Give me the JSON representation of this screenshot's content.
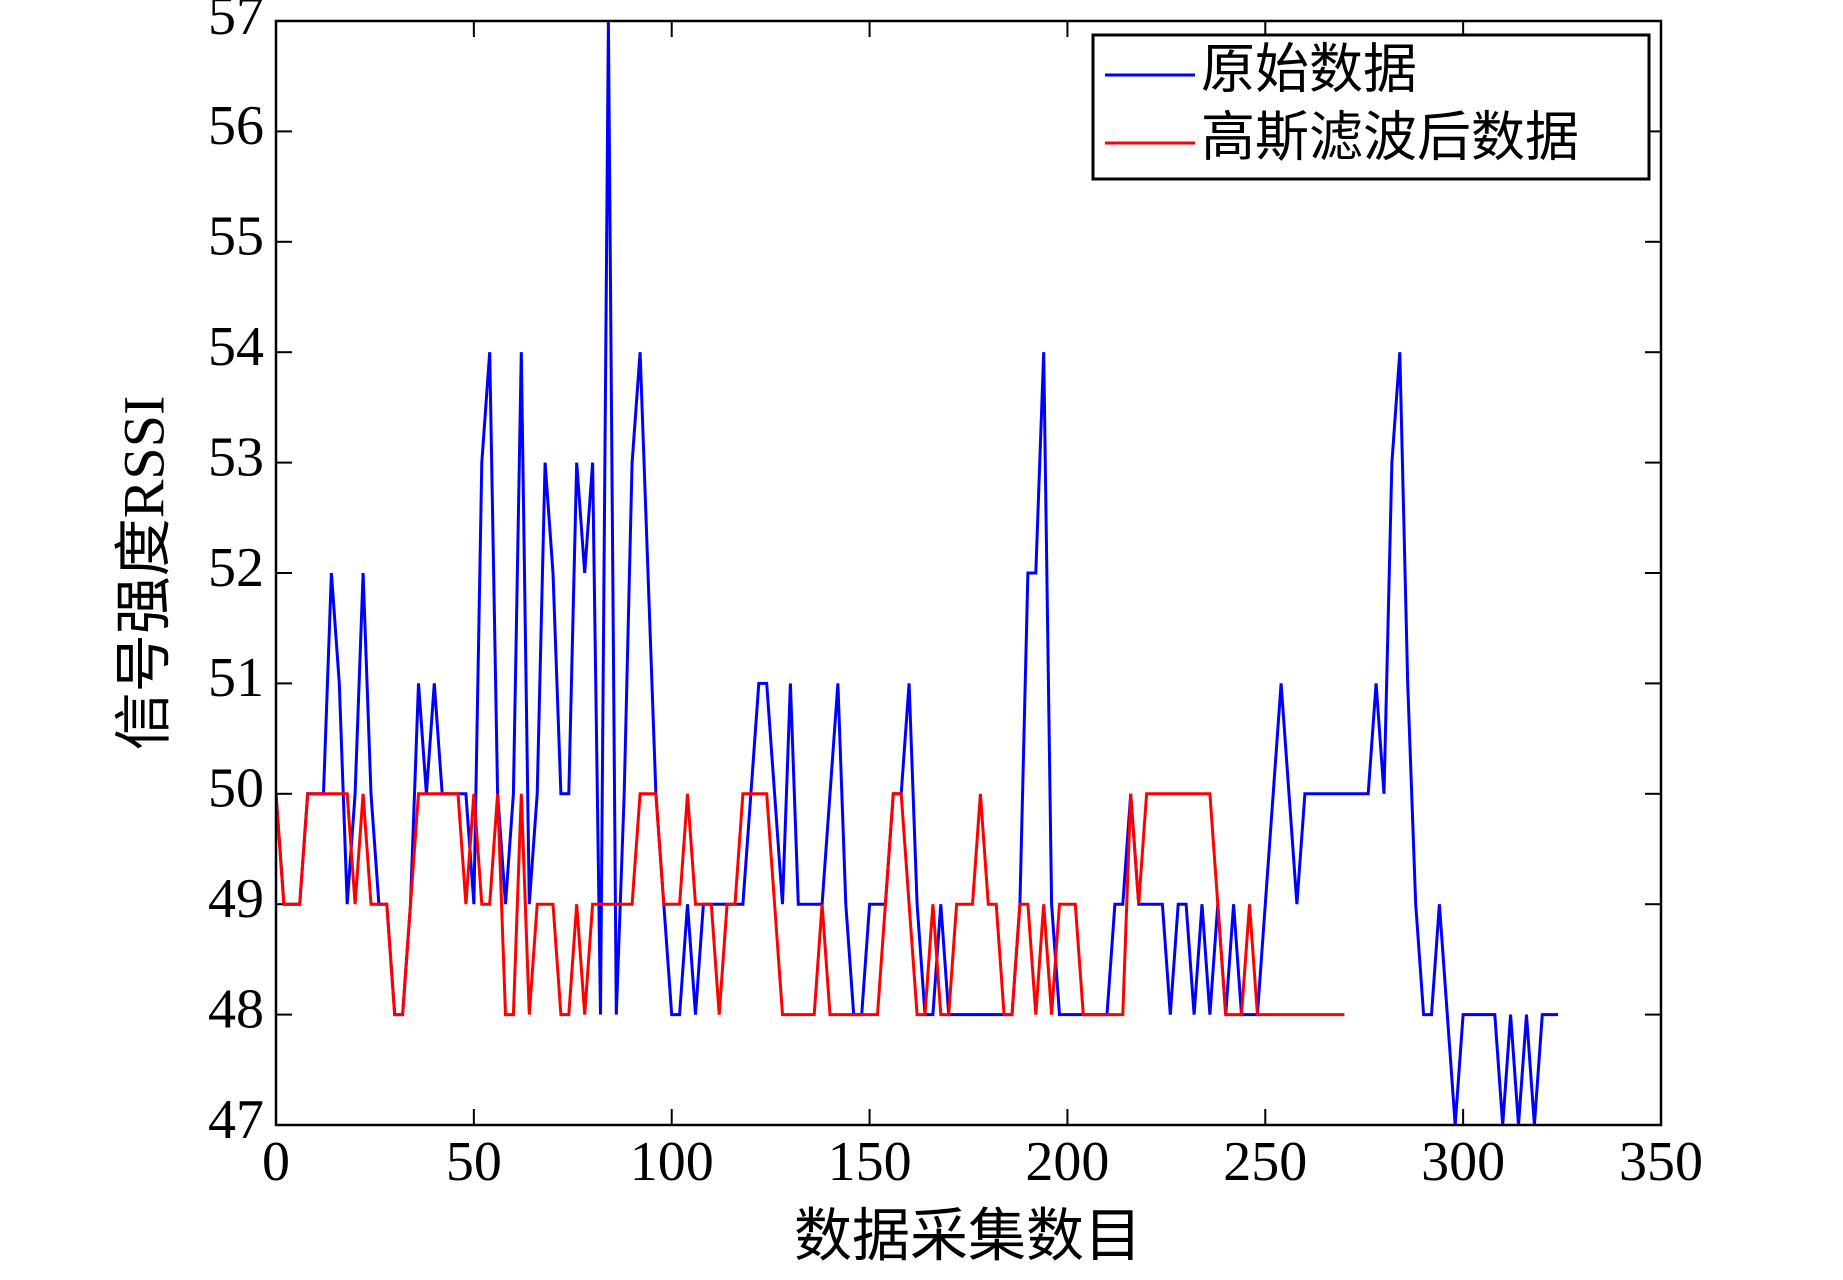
{
  "chart_data": {
    "type": "line",
    "xlabel": "数据采集数目",
    "ylabel": "信号强度RSSI",
    "x": [
      0,
      2,
      4,
      6,
      8,
      10,
      12,
      14,
      16,
      18,
      20,
      22,
      24,
      26,
      28,
      30,
      32,
      34,
      36,
      38,
      40,
      42,
      44,
      46,
      48,
      50,
      52,
      54,
      56,
      58,
      60,
      62,
      64,
      66,
      68,
      70,
      72,
      74,
      76,
      78,
      80,
      82,
      84,
      86,
      88,
      90,
      92,
      94,
      96,
      98,
      100,
      102,
      104,
      106,
      108,
      110,
      112,
      114,
      116,
      118,
      120,
      122,
      124,
      126,
      128,
      130,
      132,
      134,
      136,
      138,
      140,
      142,
      144,
      146,
      148,
      150,
      152,
      154,
      156,
      158,
      160,
      162,
      164,
      166,
      168,
      170,
      172,
      174,
      176,
      178,
      180,
      182,
      184,
      186,
      188,
      190,
      192,
      194,
      196,
      198,
      200,
      202,
      204,
      206,
      208,
      210,
      212,
      214,
      216,
      218,
      220,
      222,
      224,
      226,
      228,
      230,
      232,
      234,
      236,
      238,
      240,
      242,
      244,
      246,
      248,
      250,
      252,
      254,
      256,
      258,
      260,
      262,
      264,
      266,
      268,
      270,
      272,
      274,
      276,
      278,
      280,
      282,
      284,
      286,
      288,
      290,
      292,
      294,
      296,
      298,
      300,
      302,
      304,
      306,
      308,
      310,
      312,
      314,
      316,
      318,
      320,
      322,
      324
    ],
    "series": [
      {
        "name": "原始数据",
        "color": "#0000ff",
        "values": [
          50,
          49,
          49,
          49,
          50,
          50,
          50,
          52,
          51,
          49,
          50,
          52,
          50,
          49,
          49,
          48,
          48,
          49,
          51,
          50,
          51,
          50,
          50,
          50,
          50,
          49,
          53,
          54,
          50,
          49,
          50,
          54,
          49,
          50,
          53,
          52,
          50,
          50,
          53,
          52,
          53,
          48,
          57,
          48,
          50,
          53,
          54,
          52,
          50,
          49,
          48,
          48,
          49,
          48,
          49,
          49,
          49,
          49,
          49,
          49,
          50,
          51,
          51,
          50,
          49,
          51,
          49,
          49,
          49,
          49,
          50,
          51,
          49,
          48,
          48,
          49,
          49,
          49,
          50,
          50,
          51,
          49,
          48,
          48,
          49,
          48,
          48,
          48,
          48,
          48,
          48,
          48,
          48,
          48,
          49,
          52,
          52,
          54,
          49,
          48,
          48,
          48,
          48,
          48,
          48,
          48,
          49,
          49,
          50,
          49,
          49,
          49,
          49,
          48,
          49,
          49,
          48,
          49,
          48,
          49,
          48,
          49,
          48,
          48,
          48,
          49,
          50,
          51,
          50,
          49,
          50,
          50,
          50,
          50,
          50,
          50,
          50,
          50,
          50,
          51,
          50,
          53,
          54,
          51,
          49,
          48,
          48,
          49,
          48,
          47,
          48,
          48,
          48,
          48,
          48,
          47,
          48,
          47,
          48,
          47,
          48,
          48,
          48
        ]
      },
      {
        "name": "高斯滤波后数据",
        "color": "#ff0000",
        "values": [
          50,
          49,
          49,
          49,
          50,
          50,
          50,
          50,
          50,
          50,
          49,
          50,
          49,
          49,
          49,
          48,
          48,
          49,
          50,
          50,
          50,
          50,
          50,
          50,
          49,
          50,
          49,
          49,
          50,
          48,
          48,
          50,
          48,
          49,
          49,
          49,
          48,
          48,
          49,
          48,
          49,
          49,
          49,
          49,
          49,
          49,
          50,
          50,
          50,
          49,
          49,
          49,
          50,
          49,
          49,
          49,
          48,
          49,
          49,
          50,
          50,
          50,
          50,
          49,
          48,
          48,
          48,
          48,
          48,
          49,
          48,
          48,
          48,
          48,
          48,
          48,
          48,
          49,
          50,
          50,
          49,
          48,
          48,
          49,
          48,
          48,
          49,
          49,
          49,
          50,
          49,
          49,
          48,
          48,
          49,
          49,
          48,
          49,
          48,
          49,
          49,
          49,
          48,
          48,
          48,
          48,
          48,
          48,
          50,
          49,
          50,
          50,
          50,
          50,
          50,
          50,
          50,
          50,
          50,
          49,
          48,
          48,
          48,
          49,
          48,
          48,
          48,
          48,
          48,
          48,
          48,
          48,
          48,
          48,
          48,
          48,
          null,
          null,
          null,
          null,
          null,
          null,
          null,
          null,
          null,
          null,
          null,
          null,
          null,
          null,
          null,
          null,
          null,
          null,
          null,
          null,
          null,
          null,
          null,
          null,
          null,
          null,
          null
        ]
      }
    ],
    "xlim": [
      0,
      350
    ],
    "xticks": [
      0,
      50,
      100,
      150,
      200,
      250,
      300,
      350
    ],
    "ylim": [
      47,
      57
    ],
    "yticks": [
      47,
      48,
      49,
      50,
      51,
      52,
      53,
      54,
      55,
      56,
      57
    ],
    "legend": "upper right"
  }
}
